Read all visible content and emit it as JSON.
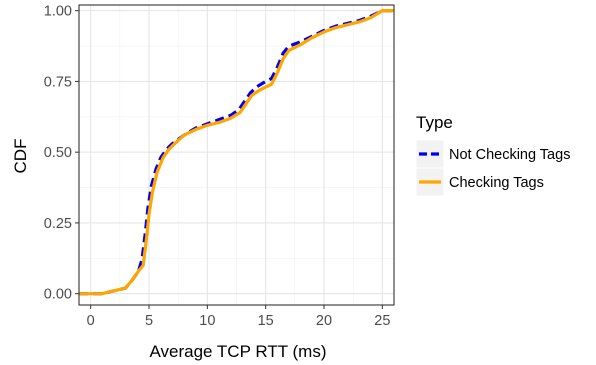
{
  "chart_data": {
    "type": "line",
    "xlabel": "Average TCP RTT (ms)",
    "ylabel": "CDF",
    "xlim": [
      -1,
      26
    ],
    "ylim": [
      -0.04,
      1.02
    ],
    "x_ticks": [
      0,
      5,
      10,
      15,
      20,
      25
    ],
    "y_ticks": [
      0.0,
      0.25,
      0.5,
      0.75,
      1.0
    ],
    "y_tick_labels": [
      "0.00",
      "0.25",
      "0.50",
      "0.75",
      "1.00"
    ],
    "grid": true,
    "legend": {
      "title": "Type",
      "placement": "right"
    },
    "series": [
      {
        "name": "Not Checking Tags",
        "color": "#0000ee",
        "dash": "dashed",
        "points": [
          [
            -1,
            0.0
          ],
          [
            1,
            0.0
          ],
          [
            2,
            0.01
          ],
          [
            3,
            0.02
          ],
          [
            3.6,
            0.05
          ],
          [
            4.1,
            0.08
          ],
          [
            4.4,
            0.12
          ],
          [
            4.7,
            0.22
          ],
          [
            4.9,
            0.3
          ],
          [
            5.2,
            0.38
          ],
          [
            5.6,
            0.44
          ],
          [
            6.0,
            0.48
          ],
          [
            6.5,
            0.51
          ],
          [
            7.0,
            0.53
          ],
          [
            8.0,
            0.56
          ],
          [
            9.0,
            0.585
          ],
          [
            10.0,
            0.6
          ],
          [
            11.0,
            0.615
          ],
          [
            12.0,
            0.63
          ],
          [
            12.7,
            0.65
          ],
          [
            13.2,
            0.68
          ],
          [
            13.7,
            0.71
          ],
          [
            14.2,
            0.73
          ],
          [
            15.0,
            0.75
          ],
          [
            15.5,
            0.76
          ],
          [
            16.0,
            0.8
          ],
          [
            16.5,
            0.85
          ],
          [
            17.0,
            0.875
          ],
          [
            18.0,
            0.89
          ],
          [
            19.0,
            0.91
          ],
          [
            20.0,
            0.93
          ],
          [
            21.0,
            0.945
          ],
          [
            22.0,
            0.955
          ],
          [
            23.0,
            0.965
          ],
          [
            24.0,
            0.98
          ],
          [
            25.0,
            1.0
          ],
          [
            26.0,
            1.0
          ]
        ]
      },
      {
        "name": "Checking Tags",
        "color": "#ffa500",
        "dash": "solid",
        "points": [
          [
            -1,
            0.0
          ],
          [
            1,
            0.0
          ],
          [
            2,
            0.01
          ],
          [
            3,
            0.02
          ],
          [
            3.6,
            0.05
          ],
          [
            4.1,
            0.08
          ],
          [
            4.5,
            0.1
          ],
          [
            4.8,
            0.2
          ],
          [
            5.0,
            0.28
          ],
          [
            5.3,
            0.36
          ],
          [
            5.7,
            0.43
          ],
          [
            6.2,
            0.48
          ],
          [
            6.7,
            0.51
          ],
          [
            7.2,
            0.53
          ],
          [
            8.0,
            0.56
          ],
          [
            9.0,
            0.58
          ],
          [
            10.0,
            0.595
          ],
          [
            11.0,
            0.605
          ],
          [
            12.0,
            0.62
          ],
          [
            12.8,
            0.64
          ],
          [
            13.3,
            0.67
          ],
          [
            13.8,
            0.7
          ],
          [
            14.5,
            0.72
          ],
          [
            15.5,
            0.74
          ],
          [
            16.0,
            0.78
          ],
          [
            16.5,
            0.83
          ],
          [
            17.0,
            0.86
          ],
          [
            18.0,
            0.88
          ],
          [
            19.0,
            0.905
          ],
          [
            20.0,
            0.925
          ],
          [
            21.0,
            0.94
          ],
          [
            22.0,
            0.95
          ],
          [
            23.0,
            0.96
          ],
          [
            24.0,
            0.975
          ],
          [
            25.0,
            1.0
          ],
          [
            26.0,
            1.0
          ]
        ]
      }
    ]
  }
}
